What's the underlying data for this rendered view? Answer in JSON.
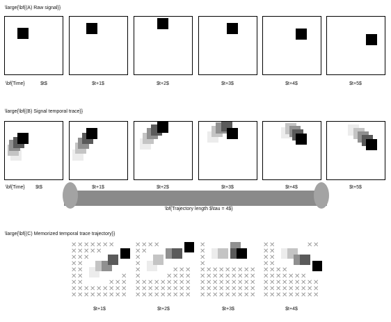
{
  "section_a": {
    "title": "\\large{\\bf{(A) Raw signal}}"
  },
  "section_b": {
    "title": "\\large{\\bf{(B) Signal temporal trace}}"
  },
  "section_c": {
    "title": "\\large{\\bf{(C) Memorized temporal trace trajectory}}"
  },
  "time_label": "\\bf{Time}",
  "frame_labels": [
    "$t$",
    "$t+1$",
    "$t+2$",
    "$t+3$",
    "$t+4$",
    "$t+5$"
  ],
  "memorized_labels": [
    "$t+1$",
    "$t+2$",
    "$t+3$",
    "$t+4$"
  ],
  "trajectory_label": "\\bf{Trajectory length $\\tau = 4$}",
  "trajectory_length": 4,
  "colors": {
    "current": "#000000",
    "trace_1": "#5a5a5a",
    "trace_2": "#909090",
    "trace_3": "#c4c4c4",
    "trace_4": "#ececec",
    "tube": "#8a8a8a",
    "memory_mark": "#9a9a9a"
  },
  "icons": {
    "memory_mark": "cross-mark-icon"
  }
}
